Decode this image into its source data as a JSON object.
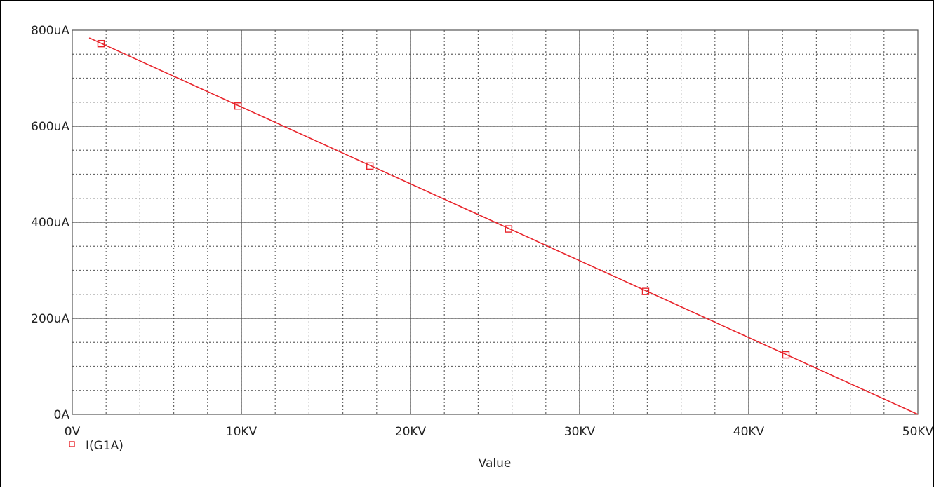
{
  "chart_data": {
    "type": "line",
    "title": "",
    "xlabel": "Value",
    "ylabel": "",
    "xlim": [
      0,
      50000
    ],
    "ylim": [
      0,
      800
    ],
    "x_unit": "V",
    "y_unit": "uA",
    "x_ticks": [
      {
        "value": 0,
        "label": "0V"
      },
      {
        "value": 10000,
        "label": "10KV"
      },
      {
        "value": 20000,
        "label": "20KV"
      },
      {
        "value": 30000,
        "label": "30KV"
      },
      {
        "value": 40000,
        "label": "40KV"
      },
      {
        "value": 50000,
        "label": "50KV"
      }
    ],
    "y_ticks": [
      {
        "value": 0,
        "label": "0A"
      },
      {
        "value": 200,
        "label": "200uA"
      },
      {
        "value": 400,
        "label": "400uA"
      },
      {
        "value": 600,
        "label": "600uA"
      },
      {
        "value": 800,
        "label": "800uA"
      }
    ],
    "grid": true,
    "legend_position": "bottom-left",
    "series": [
      {
        "name": "I(G1A)",
        "color": "#e8242b",
        "marker": "square",
        "x": [
          1000,
          50000
        ],
        "y": [
          784,
          0
        ],
        "marker_x": [
          1700,
          9800,
          17600,
          25800,
          33900,
          42200
        ],
        "marker_y": [
          772,
          642,
          517,
          386,
          256,
          124
        ]
      }
    ]
  }
}
